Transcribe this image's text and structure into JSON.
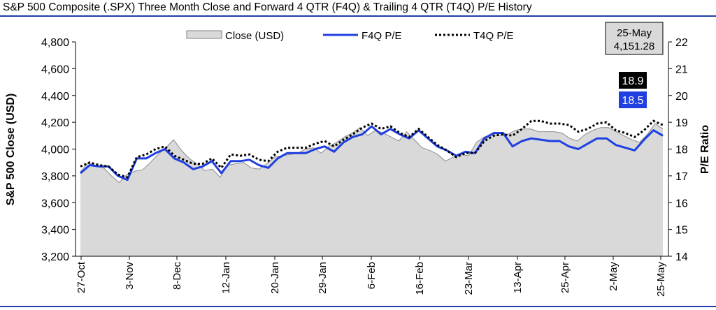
{
  "chart_data": {
    "type": "area",
    "title": "S&P 500 Composite (.SPX) Three Month Close and Forward 4 QTR (F4Q) & Trailing 4 QTR (T4Q) P/E History",
    "ylabel": "S&P 500 Close (USD)",
    "y2label": "P/E Ratio",
    "xlabel": "",
    "ylim": [
      3200,
      4800
    ],
    "y2lim": [
      14,
      22
    ],
    "yticks": [
      "3,200",
      "3,400",
      "3,600",
      "3,800",
      "4,000",
      "4,200",
      "4,400",
      "4,600",
      "4,800"
    ],
    "y2ticks": [
      "14",
      "15",
      "16",
      "17",
      "18",
      "19",
      "20",
      "21",
      "22"
    ],
    "xtick_labels": [
      "27-Oct",
      "3-Nov",
      "8-Dec",
      "12-Jan",
      "20-Jan",
      "29-Jan",
      "6-Feb",
      "16-Feb",
      "23-Mar",
      "13-Apr",
      "25-Apr",
      "2-May",
      "25-May"
    ],
    "legend": [
      "Close (USD)",
      "F4Q P/E",
      "T4Q P/E"
    ],
    "legend_position": "top-center",
    "grid": false,
    "series": [
      {
        "name": "Close (USD)",
        "axis": "left",
        "color": "#d9d9d9",
        "values": [
          3830,
          3900,
          3875,
          3860,
          3800,
          3750,
          3810,
          3835,
          3845,
          3900,
          3960,
          4010,
          4070,
          3990,
          3930,
          3890,
          3840,
          3850,
          3790,
          3880,
          3890,
          3900,
          3860,
          3850,
          3890,
          3940,
          3950,
          3960,
          3970,
          4000,
          4010,
          3970,
          4020,
          4050,
          4090,
          4120,
          4160,
          4100,
          4140,
          4120,
          4090,
          4060,
          4130,
          4070,
          4010,
          3990,
          3960,
          3910,
          3940,
          3960,
          3950,
          4050,
          4090,
          4110,
          4100,
          4110,
          4140,
          4150,
          4150,
          4130,
          4130,
          4130,
          4120,
          4080,
          4060,
          4110,
          4140,
          4160,
          4160,
          4130,
          4100,
          4070,
          4050,
          4110,
          4190,
          4150
        ]
      },
      {
        "name": "F4Q P/E",
        "axis": "right",
        "color": "#1f3fe0",
        "values": [
          17.1,
          17.4,
          17.35,
          17.35,
          17.0,
          16.85,
          17.65,
          17.65,
          17.85,
          18.0,
          17.65,
          17.5,
          17.25,
          17.35,
          17.55,
          17.1,
          17.55,
          17.55,
          17.6,
          17.4,
          17.3,
          17.65,
          17.85,
          17.85,
          17.85,
          18.0,
          18.1,
          17.9,
          18.25,
          18.45,
          18.55,
          18.85,
          18.55,
          18.75,
          18.55,
          18.4,
          18.7,
          18.4,
          18.1,
          17.95,
          17.75,
          17.9,
          17.85,
          18.4,
          18.6,
          18.6,
          18.1,
          18.3,
          18.4,
          18.35,
          18.3,
          18.3,
          18.1,
          18.0,
          18.2,
          18.4,
          18.4,
          18.15,
          18.05,
          17.95,
          18.35,
          18.7,
          18.5
        ]
      },
      {
        "name": "T4Q P/E",
        "axis": "right",
        "color": "#000000",
        "values": [
          17.35,
          17.5,
          17.4,
          17.35,
          17.05,
          16.95,
          17.7,
          17.8,
          18.0,
          18.1,
          17.75,
          17.6,
          17.45,
          17.45,
          17.65,
          17.3,
          17.8,
          17.75,
          17.8,
          17.6,
          17.55,
          17.9,
          18.05,
          18.05,
          18.05,
          18.2,
          18.3,
          18.1,
          18.35,
          18.55,
          18.8,
          18.95,
          18.75,
          18.85,
          18.6,
          18.45,
          18.75,
          18.45,
          18.15,
          17.95,
          17.7,
          17.85,
          17.85,
          18.3,
          18.5,
          18.55,
          18.5,
          18.75,
          19.05,
          19.05,
          18.95,
          18.95,
          18.9,
          18.65,
          18.75,
          18.95,
          19.0,
          18.7,
          18.6,
          18.45,
          18.7,
          19.05,
          18.9
        ]
      }
    ],
    "annotations": {
      "date_box": {
        "line1": "25-May",
        "line2": "4,151.28"
      },
      "t4q_label": {
        "text": "18.9",
        "bg": "#000000"
      },
      "f4q_label": {
        "text": "18.5",
        "bg": "#1f3fe0"
      }
    }
  }
}
